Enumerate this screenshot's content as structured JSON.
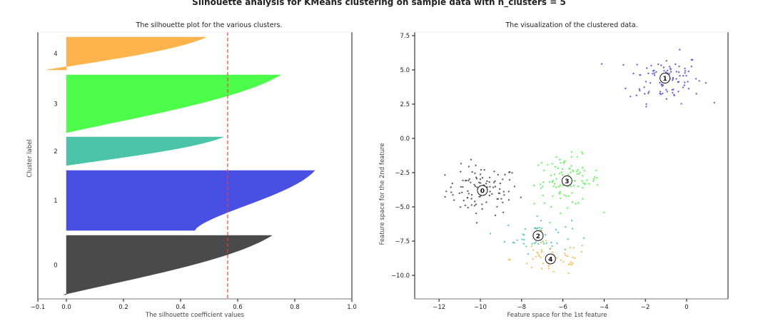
{
  "suptitle": "Silhouette analysis for KMeans clustering on sample data with n_clusters = 5",
  "chart_data": [
    {
      "type": "area",
      "title": "The silhouette plot for the various clusters.",
      "xlabel": "The silhouette coefficient values",
      "ylabel": "Cluster label",
      "xlim": [
        -0.1,
        1.0
      ],
      "xticks": [
        -0.1,
        0.0,
        0.2,
        0.4,
        0.6,
        0.8,
        1.0
      ],
      "xtick_labels": [
        "−0.1",
        "0.0",
        "0.2",
        "0.4",
        "0.6",
        "0.8",
        "1.0"
      ],
      "average_silhouette_score": 0.565,
      "average_line_color": "#e8413c",
      "clusters": [
        {
          "label": "0",
          "color": "#4a4a4a",
          "max": 0.72,
          "min": -0.01,
          "size": 100
        },
        {
          "label": "1",
          "color": "#4a4fe3",
          "max": 0.87,
          "min": 0.45,
          "size": 100
        },
        {
          "label": "2",
          "color": "#4cc4aa",
          "max": 0.55,
          "min": 0.0,
          "size": 48
        },
        {
          "label": "3",
          "color": "#4cfd4a",
          "max": 0.75,
          "min": 0.0,
          "size": 100
        },
        {
          "label": "4",
          "color": "#fdb44c",
          "max": 0.49,
          "min": -0.07,
          "size": 52
        }
      ]
    },
    {
      "type": "scatter",
      "title": "The visualization of the clustered data.",
      "xlabel": "Feature space for the 1st feature",
      "ylabel": "Feature space for the 2nd feature",
      "xlim": [
        -13.2,
        1.5
      ],
      "ylim": [
        -11.8,
        7.8
      ],
      "xticks": [
        -12,
        -10,
        -8,
        -6,
        -4,
        -2,
        0
      ],
      "xtick_labels": [
        "−12",
        "−10",
        "−8",
        "−6",
        "−4",
        "−2",
        "0"
      ],
      "yticks": [
        7.5,
        5.0,
        2.5,
        0.0,
        -2.5,
        -5.0,
        -7.5,
        -10.0
      ],
      "ytick_labels": [
        "7.5",
        "5.0",
        "2.5",
        "0.0",
        "−2.5",
        "−5.0",
        "−7.5",
        "−10.0"
      ],
      "clusters": [
        {
          "label": "0",
          "color": "#4a4a4a",
          "center": [
            -9.9,
            -3.8
          ],
          "spread": [
            1.1,
            1.0
          ],
          "n": 100
        },
        {
          "label": "1",
          "color": "#4a4fe3",
          "center": [
            -1.05,
            4.4
          ],
          "spread": [
            1.1,
            1.0
          ],
          "n": 100
        },
        {
          "label": "2",
          "color": "#4cc4aa",
          "center": [
            -7.2,
            -7.1
          ],
          "spread": [
            1.0,
            0.7
          ],
          "n": 48
        },
        {
          "label": "3",
          "color": "#4cfd4a",
          "center": [
            -5.8,
            -3.1
          ],
          "spread": [
            1.0,
            1.0
          ],
          "n": 100
        },
        {
          "label": "4",
          "color": "#fdb44c",
          "center": [
            -6.6,
            -8.8
          ],
          "spread": [
            1.2,
            0.7
          ],
          "n": 52
        }
      ]
    }
  ]
}
